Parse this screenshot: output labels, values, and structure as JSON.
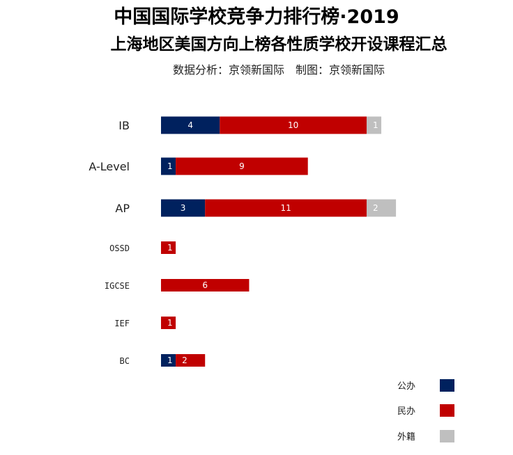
{
  "chart_data": {
    "type": "bar",
    "orientation": "horizontal",
    "stacked": true,
    "title": "中国国际学校竞争力排行榜·2019",
    "subtitle": "上海地区美国方向上榜各性质学校开设课程汇总",
    "credit": "数据分析：京领新国际　制图：京领新国际",
    "categories": [
      "IB",
      "A-Level",
      "AP",
      "OSSD",
      "IGCSE",
      "IEF",
      "BC"
    ],
    "series": [
      {
        "name": "公办",
        "color": "#00215E",
        "values": [
          4,
          1,
          3,
          0,
          0,
          0,
          1
        ]
      },
      {
        "name": "民办",
        "color": "#C00000",
        "values": [
          10,
          9,
          11,
          1,
          6,
          1,
          2
        ]
      },
      {
        "name": "外籍",
        "color": "#BFBFBF",
        "values": [
          1,
          0,
          2,
          0,
          0,
          0,
          0
        ]
      }
    ],
    "legend_position": "bottom-right",
    "grid": false,
    "axes_visible": false
  }
}
